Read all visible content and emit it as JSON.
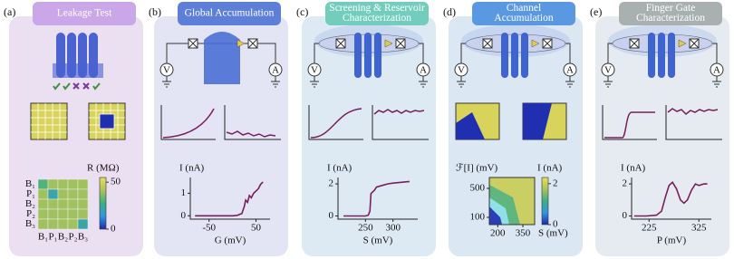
{
  "circuit": {
    "source": "V",
    "meter": "A"
  },
  "panels": [
    {
      "letter": "(a)",
      "title": [
        "Leakage Test"
      ],
      "matrix": {
        "row_labels": [
          "B₁",
          "P₁",
          "B₂",
          "P₂",
          "B₃"
        ],
        "col_labels": [
          "B₁",
          "P₁",
          "B₂",
          "P₂",
          "B₃"
        ],
        "values": [
          [
            30,
            40,
            40,
            40,
            40
          ],
          [
            40,
            22,
            40,
            40,
            40
          ],
          [
            40,
            40,
            40,
            40,
            40
          ],
          [
            40,
            40,
            40,
            40,
            40
          ],
          [
            40,
            40,
            40,
            40,
            22
          ]
        ],
        "colorbar_label": "R (MΩ)",
        "clim": [
          0,
          55
        ],
        "cticks": [
          50,
          0
        ]
      }
    },
    {
      "letter": "(b)",
      "title": [
        "Global Accumulation"
      ],
      "plot": {
        "xlabel": "G (mV)",
        "ylabel": "I (nA)",
        "xlim": [
          -90,
          80
        ],
        "ylim": [
          -0.15,
          1.7
        ],
        "xticks": [
          -50,
          50
        ],
        "yticks": [
          0,
          1
        ],
        "color": "#7a1f5c",
        "x": [
          -80,
          -60,
          -40,
          -20,
          0,
          10,
          20,
          25,
          28,
          32,
          36,
          40,
          45,
          50,
          55,
          60,
          65
        ],
        "y": [
          0,
          0,
          0,
          0,
          0,
          0.02,
          0.1,
          0.4,
          0.7,
          0.6,
          0.9,
          0.8,
          1.0,
          1.1,
          1.2,
          1.4,
          1.5
        ]
      }
    },
    {
      "letter": "(c)",
      "title": [
        "Screening & Reservoir",
        "Characterization"
      ],
      "plot": {
        "xlabel": "S (mV)",
        "ylabel": "I (nA)",
        "xlim": [
          200,
          345
        ],
        "ylim": [
          -0.2,
          2.4
        ],
        "xticks": [
          250,
          300
        ],
        "yticks": [
          0,
          2
        ],
        "color": "#7a1f5c",
        "x": [
          210,
          230,
          250,
          255,
          258,
          260,
          263,
          266,
          270,
          280,
          290,
          300,
          315,
          330
        ],
        "y": [
          0,
          0,
          0,
          0.05,
          0.3,
          1.4,
          1.5,
          1.6,
          1.8,
          1.9,
          2.0,
          2.05,
          2.1,
          2.15
        ]
      }
    },
    {
      "letter": "(d)",
      "title": [
        "Channel",
        "Accumulation"
      ],
      "heatmap": {
        "xlabel": "S (mV)",
        "ylabel": "ℱ[I] (mV)",
        "xlim": [
          150,
          420
        ],
        "ylim": [
          0,
          650
        ],
        "xticks": [
          200,
          350
        ],
        "yticks": [
          500,
          100
        ],
        "colorbar_label": "I (nA)",
        "clim": [
          0,
          2.3
        ],
        "cticks": [
          2,
          0
        ]
      }
    },
    {
      "letter": "(e)",
      "title": [
        "Finger Gate",
        "Characterization"
      ],
      "plot": {
        "xlabel": "P (mV)",
        "ylabel": "I (nA)",
        "xlim": [
          190,
          350
        ],
        "ylim": [
          -0.2,
          2.4
        ],
        "xticks": [
          225,
          325
        ],
        "yticks": [
          0,
          2
        ],
        "color": "#7a1f5c",
        "x": [
          195,
          220,
          240,
          250,
          258,
          265,
          272,
          280,
          288,
          295,
          302,
          310,
          318,
          325,
          335,
          342
        ],
        "y": [
          0,
          0,
          0.05,
          0.3,
          1.2,
          1.9,
          2.1,
          1.7,
          1.0,
          0.8,
          1.0,
          1.6,
          2.0,
          1.9,
          2.0,
          2.0
        ]
      }
    }
  ]
}
